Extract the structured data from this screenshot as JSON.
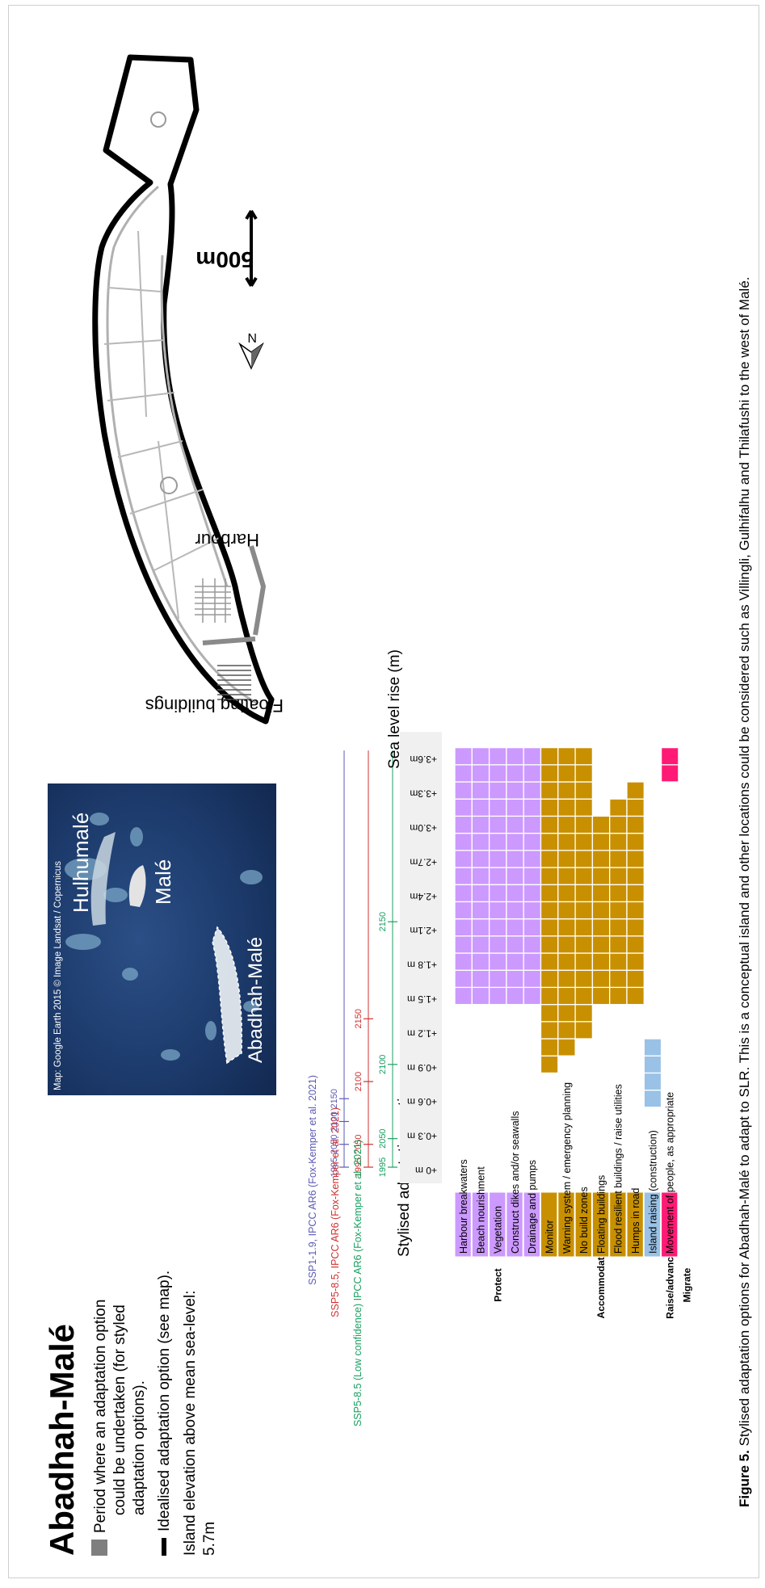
{
  "figure": {
    "title": "Abadhah-Malé",
    "legend": {
      "grey_box_text": [
        "Period where an adaptation option",
        "could be undertaken (for styled",
        "adaptation options)."
      ],
      "line_text": "Idealised adaptation option (see map).",
      "elevation_text": [
        "Island elevation above mean sea-level:",
        "5.7m"
      ]
    },
    "satellite": {
      "credit": "Map: Google Earth 2015 © Image Landsat / Copernicus",
      "labels": [
        "Hulhumalé",
        "Malé",
        "Abadhah-Malé"
      ]
    },
    "map_labels": {
      "floating": "Floating  buildings",
      "harbour": "Harbour",
      "scale": "500m",
      "north": "N"
    },
    "scenarios": [
      {
        "label": "SSP1-1.9, IPCC AR6 (Fox-Kemper et al. 2021)",
        "color": "#5a5ab4",
        "years": [
          {
            "year": "1995",
            "rise": 0
          },
          {
            "year": "2050",
            "rise": 0.2
          },
          {
            "year": "2100",
            "rise": 0.4
          },
          {
            "year": "2150",
            "rise": 0.6
          }
        ]
      },
      {
        "label": "SSP5-8.5, IPCC AR6 (Fox-Kemper et al. 2021)",
        "color": "#d03030",
        "years": [
          {
            "year": "1995",
            "rise": 0
          },
          {
            "year": "2050",
            "rise": 0.2
          },
          {
            "year": "2100",
            "rise": 0.75
          },
          {
            "year": "2150",
            "rise": 1.3
          }
        ]
      },
      {
        "label": "SSP5-8.5 (Low confidence) IPCC AR6 (Fox-Kemper et al. 2021)",
        "color": "#18a060",
        "years": [
          {
            "year": "1995",
            "rise": 0
          },
          {
            "year": "2050",
            "rise": 0.25
          },
          {
            "year": "2100",
            "rise": 0.9
          },
          {
            "year": "2150",
            "rise": 2.15
          }
        ]
      }
    ],
    "axis": {
      "title": "Sea level rise (m)",
      "ticks": [
        "+0 m",
        "+0.3 m",
        "+0.6 m",
        "+0.9 m",
        "+1.2 m",
        "+1.5 m",
        "+1.8 m",
        "+2.1m",
        "+2.4m",
        "+2.7m",
        "+3.0m",
        "+3.3m",
        "+3.6m"
      ]
    },
    "options_header": "Stylised adaptation options",
    "groups": [
      {
        "name": "Protect",
        "rows": 5
      },
      {
        "name": "Accommodate",
        "rows": 7
      },
      {
        "name": "Raise/advance",
        "rows": 1
      },
      {
        "name": "Migrate",
        "rows": 1
      }
    ],
    "options": [
      {
        "label": "Harbour breakwaters",
        "color": "#cc99ff",
        "from": 1.5,
        "to": 3.6
      },
      {
        "label": "Beach nourishment",
        "color": "#cc99ff",
        "from": 1.5,
        "to": 3.6
      },
      {
        "label": "Vegetation",
        "color": "#cc99ff",
        "from": 1.5,
        "to": 3.6
      },
      {
        "label": "Construct dikes and/or seawalls",
        "color": "#cc99ff",
        "from": 1.5,
        "to": 3.6
      },
      {
        "label": "Drainage and pumps",
        "color": "#cc99ff",
        "from": 1.5,
        "to": 3.6
      },
      {
        "label": "Monitor",
        "color": "#c89000",
        "from": 0.9,
        "to": 3.6
      },
      {
        "label": "Warning system / emergency planning",
        "color": "#c89000",
        "from": 1.05,
        "to": 3.6
      },
      {
        "label": "No build zones",
        "color": "#c89000",
        "from": 1.2,
        "to": 3.6
      },
      {
        "label": "Floating buildings",
        "color": "#c89000",
        "from": 1.5,
        "to": 3.0
      },
      {
        "label": "Flood resilient buildings / raise utilities",
        "color": "#c89000",
        "from": 1.5,
        "to": 3.15
      },
      {
        "label": "Humps in road",
        "color": "#c89000",
        "from": 1.5,
        "to": 3.3
      },
      {
        "label": "Island raising (construction)",
        "color": "#99c2e6",
        "from": 0.6,
        "to": 1.05
      },
      {
        "label": "Movement of people, as appropriate",
        "color": "#ff1a75",
        "from": 3.45,
        "to": 3.6
      },
      {
        "label": "",
        "color": "#ffffff",
        "from": 0,
        "to": 0
      }
    ],
    "caption": {
      "label": "Figure 5.",
      "text": "Stylised adaptation options for Abadhah-Malé to adapt to SLR. This is a conceptual island and other locations could be considered such as Villingli, Gulhifalhu and Thilafushi to the west of Malé."
    }
  }
}
